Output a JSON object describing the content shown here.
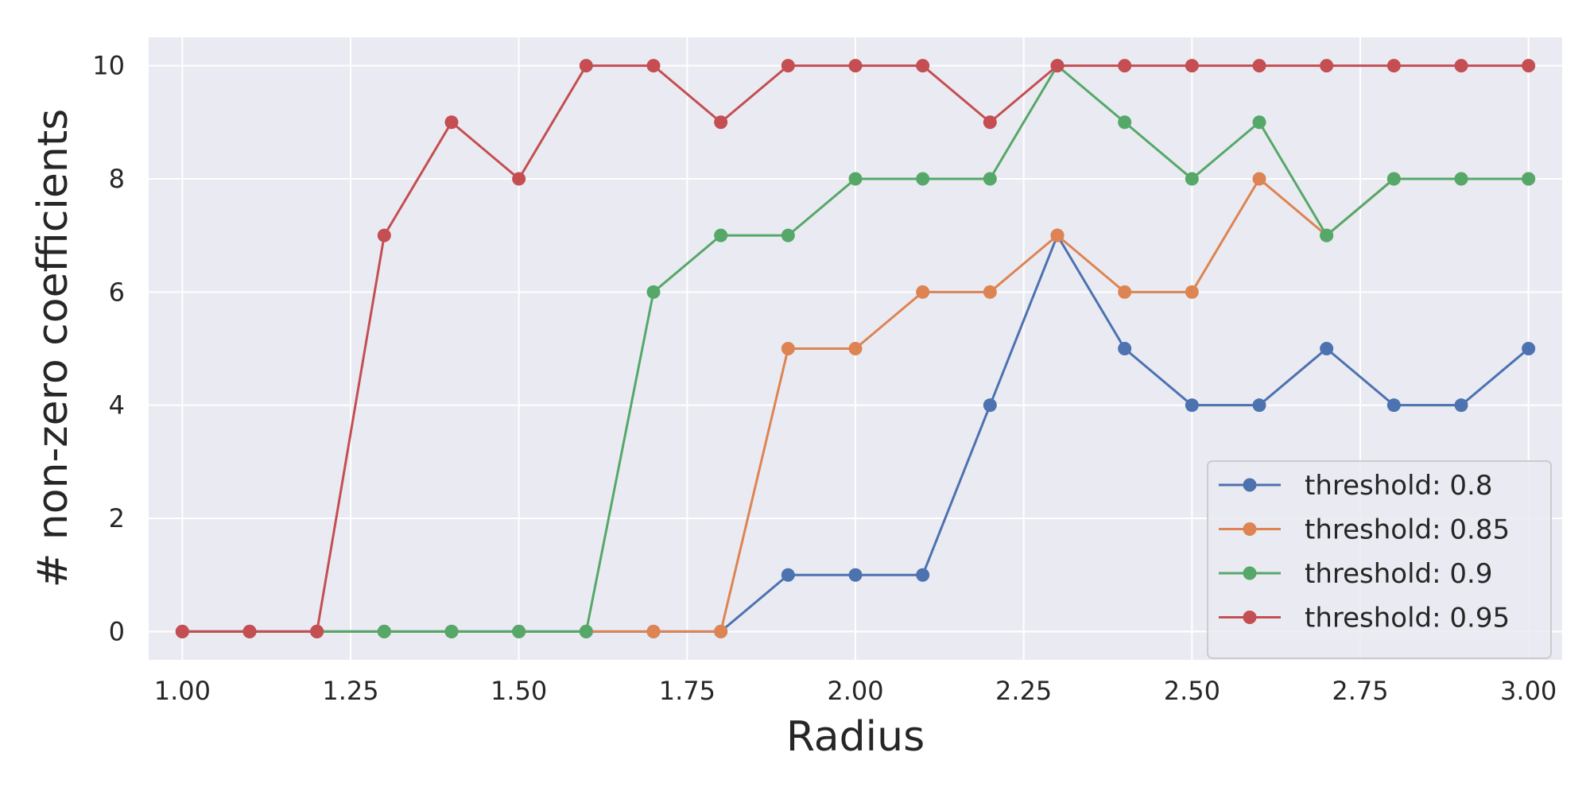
{
  "chart_data": {
    "type": "line",
    "xlabel": "Radius",
    "ylabel": "# non-zero coefficients",
    "xlim": [
      0.95,
      3.05
    ],
    "ylim": [
      -0.5,
      10.5
    ],
    "xticks": [
      "1.00",
      "1.25",
      "1.50",
      "1.75",
      "2.00",
      "2.25",
      "2.50",
      "2.75",
      "3.00"
    ],
    "yticks": [
      "0",
      "2",
      "4",
      "6",
      "8",
      "10"
    ],
    "grid": true,
    "legend_position": "lower-right",
    "x": [
      1.0,
      1.1,
      1.2,
      1.3,
      1.4,
      1.5,
      1.6,
      1.7,
      1.8,
      1.9,
      2.0,
      2.1,
      2.2,
      2.3,
      2.4,
      2.5,
      2.6,
      2.7,
      2.8,
      2.9,
      3.0
    ],
    "series": [
      {
        "name": "threshold: 0.8",
        "color": "#4c72b0",
        "values": [
          0,
          0,
          0,
          0,
          0,
          0,
          0,
          0,
          0,
          1,
          1,
          1,
          4,
          7,
          5,
          4,
          4,
          5,
          4,
          4,
          5
        ]
      },
      {
        "name": "threshold: 0.85",
        "color": "#dd8452",
        "values": [
          0,
          0,
          0,
          0,
          0,
          0,
          0,
          0,
          0,
          5,
          5,
          6,
          6,
          7,
          6,
          6,
          8,
          7,
          8,
          8,
          8
        ]
      },
      {
        "name": "threshold: 0.9",
        "color": "#55a868",
        "values": [
          0,
          0,
          0,
          0,
          0,
          0,
          0,
          6,
          7,
          7,
          8,
          8,
          8,
          10,
          9,
          8,
          9,
          7,
          8,
          8,
          8
        ]
      },
      {
        "name": "threshold: 0.95",
        "color": "#c44e52",
        "values": [
          0,
          0,
          0,
          7,
          9,
          8,
          10,
          10,
          9,
          10,
          10,
          10,
          9,
          10,
          10,
          10,
          10,
          10,
          10,
          10,
          10
        ]
      }
    ],
    "background_color": "#eaeaf2",
    "grid_color": "#ffffff"
  }
}
